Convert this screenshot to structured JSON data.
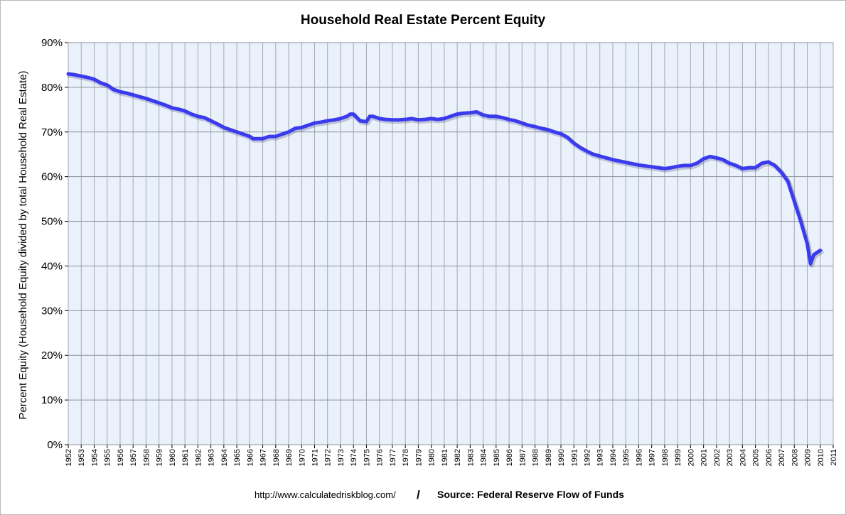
{
  "chart_data": {
    "type": "line",
    "title": "Household Real Estate Percent Equity",
    "xlabel": "",
    "ylabel": "Percent Equity (Household Equity divided by total Household Real Estate)",
    "x_ticks": [
      "1952",
      "1953",
      "1954",
      "1955",
      "1956",
      "1957",
      "1958",
      "1959",
      "1960",
      "1961",
      "1962",
      "1963",
      "1964",
      "1965",
      "1966",
      "1967",
      "1968",
      "1969",
      "1970",
      "1971",
      "1972",
      "1973",
      "1974",
      "1975",
      "1976",
      "1977",
      "1978",
      "1979",
      "1980",
      "1981",
      "1982",
      "1983",
      "1984",
      "1985",
      "1986",
      "1987",
      "1988",
      "1989",
      "1990",
      "1991",
      "1992",
      "1993",
      "1994",
      "1995",
      "1996",
      "1997",
      "1998",
      "1999",
      "2000",
      "2001",
      "2002",
      "2003",
      "2004",
      "2005",
      "2006",
      "2007",
      "2008",
      "2009",
      "2010",
      "2011"
    ],
    "y_ticks": [
      "0%",
      "10%",
      "20%",
      "30%",
      "40%",
      "50%",
      "60%",
      "70%",
      "80%",
      "90%"
    ],
    "ylim": [
      0,
      90
    ],
    "xlim": [
      1952,
      2011
    ],
    "grid": true,
    "line_color": "#3b3bee",
    "plot_background": "#eaf1fb",
    "series": [
      {
        "x": [
          1952.0,
          1952.5,
          1953.0,
          1953.5,
          1954.0,
          1954.5,
          1955.0,
          1955.5,
          1956.0,
          1956.5,
          1957.0,
          1957.5,
          1958.0,
          1958.5,
          1959.0,
          1959.5,
          1960.0,
          1960.5,
          1961.0,
          1961.5,
          1962.0,
          1962.5,
          1963.0,
          1963.5,
          1964.0,
          1964.5,
          1965.0,
          1965.5,
          1966.0,
          1966.25,
          1966.5,
          1967.0,
          1967.5,
          1968.0,
          1968.5,
          1969.0,
          1969.5,
          1970.0,
          1970.5,
          1971.0,
          1971.5,
          1972.0,
          1972.5,
          1973.0,
          1973.5,
          1973.75,
          1974.0,
          1974.5,
          1975.0,
          1975.25,
          1975.5,
          1976.0,
          1976.5,
          1977.0,
          1977.5,
          1978.0,
          1978.5,
          1979.0,
          1979.5,
          1980.0,
          1980.5,
          1981.0,
          1981.5,
          1982.0,
          1982.5,
          1983.0,
          1983.5,
          1984.0,
          1984.5,
          1985.0,
          1985.5,
          1986.0,
          1986.5,
          1987.0,
          1987.5,
          1988.0,
          1988.5,
          1989.0,
          1989.5,
          1990.0,
          1990.5,
          1991.0,
          1991.5,
          1992.0,
          1992.5,
          1993.0,
          1993.5,
          1994.0,
          1994.5,
          1995.0,
          1995.5,
          1996.0,
          1996.5,
          1997.0,
          1997.5,
          1998.0,
          1998.5,
          1999.0,
          1999.5,
          2000.0,
          2000.5,
          2001.0,
          2001.5,
          2002.0,
          2002.5,
          2003.0,
          2003.5,
          2004.0,
          2004.5,
          2005.0,
          2005.5,
          2006.0,
          2006.5,
          2007.0,
          2007.5,
          2008.0,
          2008.5,
          2009.0,
          2009.25,
          2009.5,
          2010.0
        ],
        "y": [
          83.0,
          82.8,
          82.5,
          82.2,
          81.8,
          81.0,
          80.5,
          79.5,
          79.0,
          78.7,
          78.3,
          77.9,
          77.5,
          77.0,
          76.5,
          76.0,
          75.4,
          75.1,
          74.7,
          74.0,
          73.5,
          73.2,
          72.5,
          71.8,
          71.0,
          70.5,
          70.0,
          69.5,
          69.0,
          68.5,
          68.5,
          68.5,
          69.0,
          69.0,
          69.5,
          70.0,
          70.8,
          71.0,
          71.5,
          72.0,
          72.2,
          72.5,
          72.7,
          73.0,
          73.5,
          74.0,
          74.0,
          72.5,
          72.3,
          73.5,
          73.5,
          73.0,
          72.8,
          72.7,
          72.7,
          72.8,
          73.0,
          72.7,
          72.8,
          73.0,
          72.8,
          73.0,
          73.5,
          74.0,
          74.2,
          74.3,
          74.5,
          73.8,
          73.5,
          73.5,
          73.2,
          72.8,
          72.5,
          72.0,
          71.5,
          71.2,
          70.8,
          70.5,
          70.0,
          69.6,
          68.8,
          67.5,
          66.5,
          65.7,
          65.0,
          64.6,
          64.2,
          63.8,
          63.5,
          63.2,
          62.9,
          62.6,
          62.4,
          62.2,
          62.0,
          61.8,
          62.0,
          62.3,
          62.5,
          62.5,
          63.0,
          64.0,
          64.5,
          64.2,
          63.8,
          63.0,
          62.5,
          61.8,
          62.0,
          62.0,
          63.0,
          63.3,
          62.5,
          61.0,
          59.0,
          54.5,
          50.0,
          45.0,
          40.5,
          42.5,
          43.5
        ]
      }
    ]
  },
  "footer": {
    "url": "http://www.calculatedriskblog.com/",
    "slash": "/",
    "source": "Source: Federal Reserve Flow of Funds"
  }
}
